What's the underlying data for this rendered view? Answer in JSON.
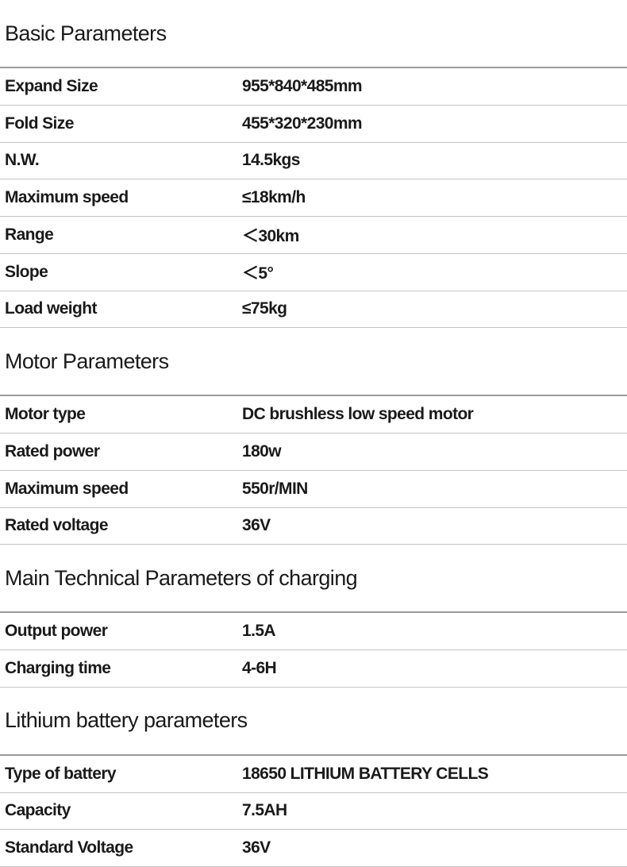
{
  "sections": [
    {
      "title": "Basic Parameters",
      "rows": [
        [
          "Expand Size",
          "955*840*485mm"
        ],
        [
          "Fold Size",
          "455*320*230mm"
        ],
        [
          "N.W.",
          "14.5kgs"
        ],
        [
          "Maximum speed",
          "≤18km/h"
        ],
        [
          "Range",
          "＜30km"
        ],
        [
          "Slope",
          "＜5°"
        ],
        [
          "Load weight",
          "≤75kg"
        ]
      ]
    },
    {
      "title": "Motor Parameters",
      "rows": [
        [
          "Motor type",
          "DC brushless low speed motor"
        ],
        [
          "Rated power",
          "180w"
        ],
        [
          "Maximum speed",
          "550r/MIN"
        ],
        [
          "Rated voltage",
          "36V"
        ]
      ]
    },
    {
      "title": "Main Technical Parameters of charging",
      "rows": [
        [
          "Output power",
          "1.5A"
        ],
        [
          "Charging time",
          "4-6H"
        ]
      ]
    },
    {
      "title": "Lithium battery parameters",
      "rows": [
        [
          "Type of battery",
          "18650 LITHIUM BATTERY CELLS"
        ],
        [
          "Capacity",
          "7.5AH"
        ],
        [
          "Standard Voltage",
          "36V"
        ]
      ]
    }
  ]
}
